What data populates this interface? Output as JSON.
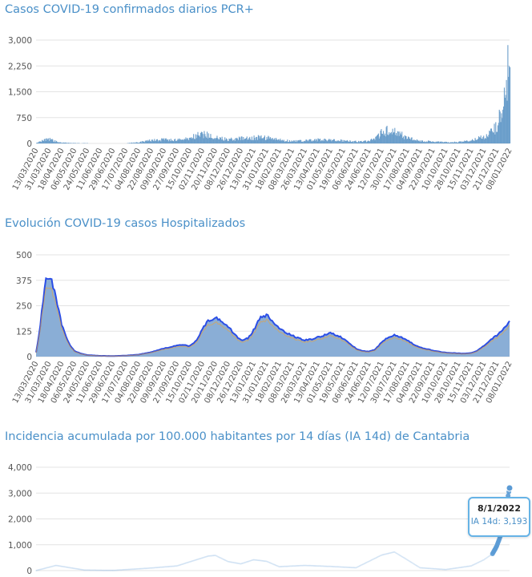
{
  "colors": {
    "title": "#4a90c8",
    "cases_bar": "#6b9ecb",
    "hosp_blue": "#2b4ee6",
    "hosp_green": "#2e9e3c",
    "hosp_orange": "#f0a032",
    "hosp_fill": "#8aaed6",
    "ia_line": "#5b9bd5",
    "grid": "#e3e3e3",
    "axis_text": "#555555"
  },
  "dates": [
    "13/03/2020",
    "31/03/2020",
    "18/04/2020",
    "06/05/2020",
    "24/05/2020",
    "11/06/2020",
    "29/06/2020",
    "17/07/2020",
    "04/08/2020",
    "22/08/2020",
    "09/09/2020",
    "27/09/2020",
    "15/10/2020",
    "02/11/2020",
    "20/11/2020",
    "08/12/2020",
    "26/12/2020",
    "13/01/2021",
    "31/01/2021",
    "18/02/2021",
    "08/03/2021",
    "26/03/2021",
    "13/04/2021",
    "01/05/2021",
    "19/05/2021",
    "06/06/2021",
    "24/06/2021",
    "12/07/2021",
    "30/07/2021",
    "17/08/2021",
    "04/09/2021",
    "22/09/2021",
    "10/10/2021",
    "28/10/2021",
    "15/11/2021",
    "03/12/2021",
    "21/12/2021",
    "08/01/2022"
  ],
  "chart_data": [
    {
      "type": "bar",
      "title": "Casos COVID-19 confirmados diarios PCR+",
      "yticks": [
        "3,000",
        "2,250",
        "1,500",
        "750",
        "0"
      ],
      "ylim": [
        0,
        3000
      ],
      "grid": true,
      "x_start": "13/03/2020",
      "x_end": "08/01/2022",
      "series": [
        {
          "x": [
            "13/03/2020",
            "22/03/2020",
            "31/03/2020",
            "09/04/2020",
            "18/04/2020",
            "06/05/2020",
            "11/06/2020",
            "17/07/2020",
            "04/08/2020",
            "22/08/2020",
            "09/09/2020",
            "27/09/2020",
            "15/10/2020",
            "25/10/2020",
            "02/11/2020",
            "10/11/2020",
            "20/11/2020",
            "08/12/2020",
            "26/12/2020",
            "13/01/2021",
            "22/01/2021",
            "31/01/2021",
            "18/02/2021",
            "08/03/2021",
            "26/03/2021",
            "13/04/2021",
            "01/05/2021",
            "19/05/2021",
            "06/06/2021",
            "24/06/2021",
            "05/07/2021",
            "12/07/2021",
            "20/07/2021",
            "30/07/2021",
            "10/08/2021",
            "17/08/2021",
            "04/09/2021",
            "22/09/2021",
            "10/10/2021",
            "28/10/2021",
            "15/11/2021",
            "25/11/2021",
            "03/12/2021",
            "12/12/2021",
            "18/12/2021",
            "21/12/2021",
            "24/12/2021",
            "27/12/2021",
            "30/12/2021",
            "02/01/2022",
            "05/01/2022",
            "08/01/2022"
          ],
          "y": [
            10,
            80,
            120,
            60,
            25,
            10,
            3,
            5,
            35,
            90,
            110,
            95,
            150,
            230,
            270,
            230,
            160,
            120,
            140,
            170,
            180,
            160,
            100,
            70,
            75,
            110,
            95,
            80,
            55,
            70,
            200,
            310,
            380,
            330,
            240,
            150,
            70,
            50,
            35,
            40,
            90,
            160,
            200,
            320,
            420,
            560,
            750,
            1050,
            1350,
            1600,
            2000,
            2200
          ]
        }
      ]
    },
    {
      "type": "area",
      "title": "Evolución COVID-19 casos  Hospitalizados",
      "yticks": [
        "500",
        "375",
        "250",
        "125",
        "0"
      ],
      "ylim": [
        0,
        500
      ],
      "grid": true,
      "x_start": "13/03/2020",
      "x_end": "08/01/2022",
      "series": [
        {
          "name": "",
          "x": [
            "13/03/2020",
            "18/03/2020",
            "22/03/2020",
            "27/03/2020",
            "31/03/2020",
            "05/04/2020",
            "09/04/2020",
            "14/04/2020",
            "18/04/2020",
            "24/04/2020",
            "30/04/2020",
            "06/05/2020",
            "15/05/2020",
            "24/05/2020",
            "11/06/2020",
            "29/06/2020",
            "17/07/2020",
            "04/08/2020",
            "22/08/2020",
            "09/09/2020",
            "27/09/2020",
            "05/10/2020",
            "15/10/2020",
            "25/10/2020",
            "02/11/2020",
            "10/11/2020",
            "20/11/2020",
            "29/11/2020",
            "08/12/2020",
            "17/12/2020",
            "26/12/2020",
            "05/01/2021",
            "13/01/2021",
            "22/01/2021",
            "31/01/2021",
            "09/02/2021",
            "18/02/2021",
            "27/02/2021",
            "08/03/2021",
            "17/03/2021",
            "26/03/2021",
            "04/04/2021",
            "13/04/2021",
            "22/04/2021",
            "01/05/2021",
            "10/05/2021",
            "19/05/2021",
            "28/05/2021",
            "06/06/2021",
            "15/06/2021",
            "24/06/2021",
            "03/07/2021",
            "12/07/2021",
            "21/07/2021",
            "30/07/2021",
            "08/08/2021",
            "17/08/2021",
            "26/08/2021",
            "04/09/2021",
            "13/09/2021",
            "22/09/2021",
            "01/10/2021",
            "10/10/2021",
            "19/10/2021",
            "28/10/2021",
            "06/11/2021",
            "15/11/2021",
            "24/11/2021",
            "03/12/2021",
            "12/12/2021",
            "21/12/2021",
            "30/12/2021",
            "08/01/2022"
          ],
          "y": [
            20,
            120,
            250,
            370,
            395,
            360,
            300,
            230,
            160,
            100,
            55,
            28,
            15,
            8,
            4,
            3,
            5,
            10,
            22,
            40,
            55,
            58,
            52,
            80,
            135,
            175,
            190,
            175,
            150,
            110,
            80,
            90,
            130,
            190,
            205,
            170,
            140,
            120,
            105,
            90,
            80,
            85,
            95,
            105,
            115,
            105,
            90,
            65,
            40,
            28,
            25,
            35,
            70,
            95,
            105,
            95,
            80,
            60,
            45,
            38,
            30,
            24,
            20,
            18,
            16,
            15,
            18,
            30,
            55,
            80,
            105,
            135,
            175
          ]
        }
      ]
    },
    {
      "type": "scatter",
      "title": "Incidencia acumulada por 100.000 habitantes por 14 días (IA 14d) de Cantabria",
      "yticks": [
        "4,000",
        "3,000",
        "2,000",
        "1,000",
        "0"
      ],
      "ylim": [
        0,
        4000
      ],
      "grid": true,
      "x_start": "13/03/2020",
      "x_end": "08/01/2022",
      "series": [
        {
          "x": [
            "13/03/2020",
            "10/04/2020",
            "20/05/2020",
            "29/06/2020",
            "22/08/2020",
            "27/09/2020",
            "20/10/2020",
            "10/11/2020",
            "20/11/2020",
            "08/12/2020",
            "26/12/2020",
            "13/01/2021",
            "31/01/2021",
            "18/02/2021",
            "26/03/2021",
            "01/05/2021",
            "06/06/2021",
            "12/07/2021",
            "30/07/2021",
            "17/08/2021",
            "04/09/2021",
            "10/10/2021",
            "15/11/2021",
            "03/12/2021",
            "15/12/2021",
            "21/12/2021",
            "27/12/2021",
            "01/01/2022",
            "04/01/2022",
            "06/01/2022",
            "08/01/2022"
          ],
          "y": [
            0,
            200,
            20,
            5,
            100,
            180,
            380,
            560,
            590,
            350,
            260,
            420,
            360,
            150,
            200,
            160,
            110,
            600,
            720,
            420,
            110,
            40,
            180,
            420,
            650,
            950,
            1400,
            1900,
            2500,
            2900,
            3193
          ]
        }
      ],
      "tooltip": {
        "date": "8/1/2022",
        "label": "IA 14d: 3,193"
      }
    }
  ]
}
